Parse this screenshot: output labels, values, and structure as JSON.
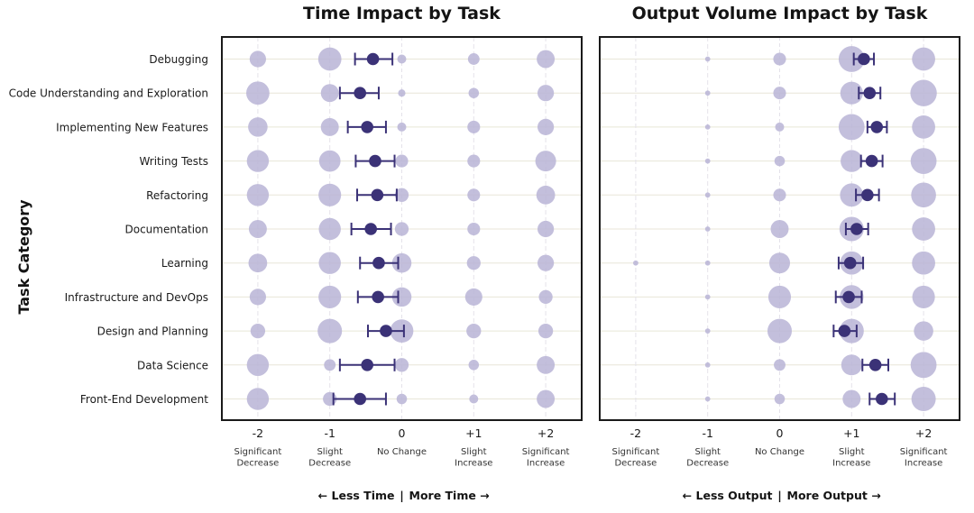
{
  "y_axis_title": "Task Category",
  "categories": [
    "Debugging",
    "Code Understanding and Exploration",
    "Implementing New Features",
    "Writing Tests",
    "Refactoring",
    "Documentation",
    "Learning",
    "Infrastructure and DevOps",
    "Design and Planning",
    "Data Science",
    "Front-End Development"
  ],
  "colors": {
    "mean": "#3b3277",
    "bubble": "#b8b4d6",
    "frame": "#1a1a1a",
    "grid": "#e8e6d8"
  },
  "chart_data": [
    {
      "type": "scatter",
      "title": "Time Impact by Task",
      "direction_left": "← Less Time",
      "direction_right": "More Time →",
      "direction_sep": "|",
      "xlim": [
        -2.5,
        2.5
      ],
      "ticks": [
        {
          "value": -2,
          "label": "-2",
          "desc": [
            "Significant",
            "Decrease"
          ]
        },
        {
          "value": -1,
          "label": "-1",
          "desc": [
            "Slight",
            "Decrease"
          ]
        },
        {
          "value": 0,
          "label": "0",
          "desc": [
            "No Change"
          ]
        },
        {
          "value": 1,
          "label": "+1",
          "desc": [
            "Slight",
            "Increase"
          ]
        },
        {
          "value": 2,
          "label": "+2",
          "desc": [
            "Significant",
            "Increase"
          ]
        }
      ],
      "mean": [
        -0.4,
        -0.58,
        -0.48,
        -0.37,
        -0.34,
        -0.43,
        -0.32,
        -0.33,
        -0.22,
        -0.48,
        -0.58
      ],
      "ci_low": [
        -0.65,
        -0.86,
        -0.75,
        -0.64,
        -0.62,
        -0.7,
        -0.58,
        -0.61,
        -0.47,
        -0.86,
        -0.95
      ],
      "ci_high": [
        -0.13,
        -0.32,
        -0.22,
        -0.1,
        -0.07,
        -0.15,
        -0.05,
        -0.05,
        0.03,
        -0.1,
        -0.22
      ],
      "shares": [
        [
          0.1,
          0.2,
          0.03,
          0.05,
          0.12
        ],
        [
          0.2,
          0.12,
          0.02,
          0.04,
          0.1
        ],
        [
          0.14,
          0.12,
          0.03,
          0.06,
          0.1
        ],
        [
          0.18,
          0.17,
          0.06,
          0.06,
          0.16
        ],
        [
          0.18,
          0.19,
          0.07,
          0.06,
          0.13
        ],
        [
          0.12,
          0.18,
          0.07,
          0.06,
          0.1
        ],
        [
          0.13,
          0.18,
          0.14,
          0.07,
          0.1
        ],
        [
          0.1,
          0.19,
          0.14,
          0.11,
          0.07
        ],
        [
          0.08,
          0.22,
          0.2,
          0.08,
          0.08
        ],
        [
          0.18,
          0.05,
          0.07,
          0.04,
          0.12
        ],
        [
          0.18,
          0.07,
          0.04,
          0.03,
          0.12
        ]
      ]
    },
    {
      "type": "scatter",
      "title": "Output Volume Impact by Task",
      "direction_left": "← Less Output",
      "direction_right": "More Output →",
      "direction_sep": "|",
      "xlim": [
        -2.5,
        2.5
      ],
      "ticks": [
        {
          "value": -2,
          "label": "-2",
          "desc": [
            "Significant",
            "Decrease"
          ]
        },
        {
          "value": -1,
          "label": "-1",
          "desc": [
            "Slight",
            "Decrease"
          ]
        },
        {
          "value": 0,
          "label": "0",
          "desc": [
            "No Change"
          ]
        },
        {
          "value": 1,
          "label": "+1",
          "desc": [
            "Slight",
            "Increase"
          ]
        },
        {
          "value": 2,
          "label": "+2",
          "desc": [
            "Significant",
            "Increase"
          ]
        }
      ],
      "mean": [
        1.17,
        1.25,
        1.35,
        1.28,
        1.22,
        1.07,
        0.98,
        0.96,
        0.9,
        1.33,
        1.42
      ],
      "ci_low": [
        1.03,
        1.1,
        1.22,
        1.13,
        1.06,
        0.92,
        0.82,
        0.78,
        0.75,
        1.15,
        1.25
      ],
      "ci_high": [
        1.31,
        1.4,
        1.49,
        1.43,
        1.38,
        1.23,
        1.16,
        1.14,
        1.07,
        1.51,
        1.6
      ],
      "shares": [
        [
          0,
          0.01,
          0.06,
          0.25,
          0.2
        ],
        [
          0,
          0.01,
          0.06,
          0.19,
          0.26
        ],
        [
          0,
          0.01,
          0.03,
          0.25,
          0.2
        ],
        [
          0,
          0.01,
          0.04,
          0.18,
          0.25
        ],
        [
          0,
          0.01,
          0.06,
          0.2,
          0.23
        ],
        [
          0,
          0.01,
          0.12,
          0.22,
          0.2
        ],
        [
          0.01,
          0.01,
          0.16,
          0.2,
          0.2
        ],
        [
          0,
          0.01,
          0.19,
          0.21,
          0.19
        ],
        [
          0,
          0.01,
          0.22,
          0.22,
          0.14
        ],
        [
          0,
          0.01,
          0.05,
          0.16,
          0.25
        ],
        [
          0,
          0.01,
          0.04,
          0.12,
          0.22
        ]
      ]
    }
  ]
}
